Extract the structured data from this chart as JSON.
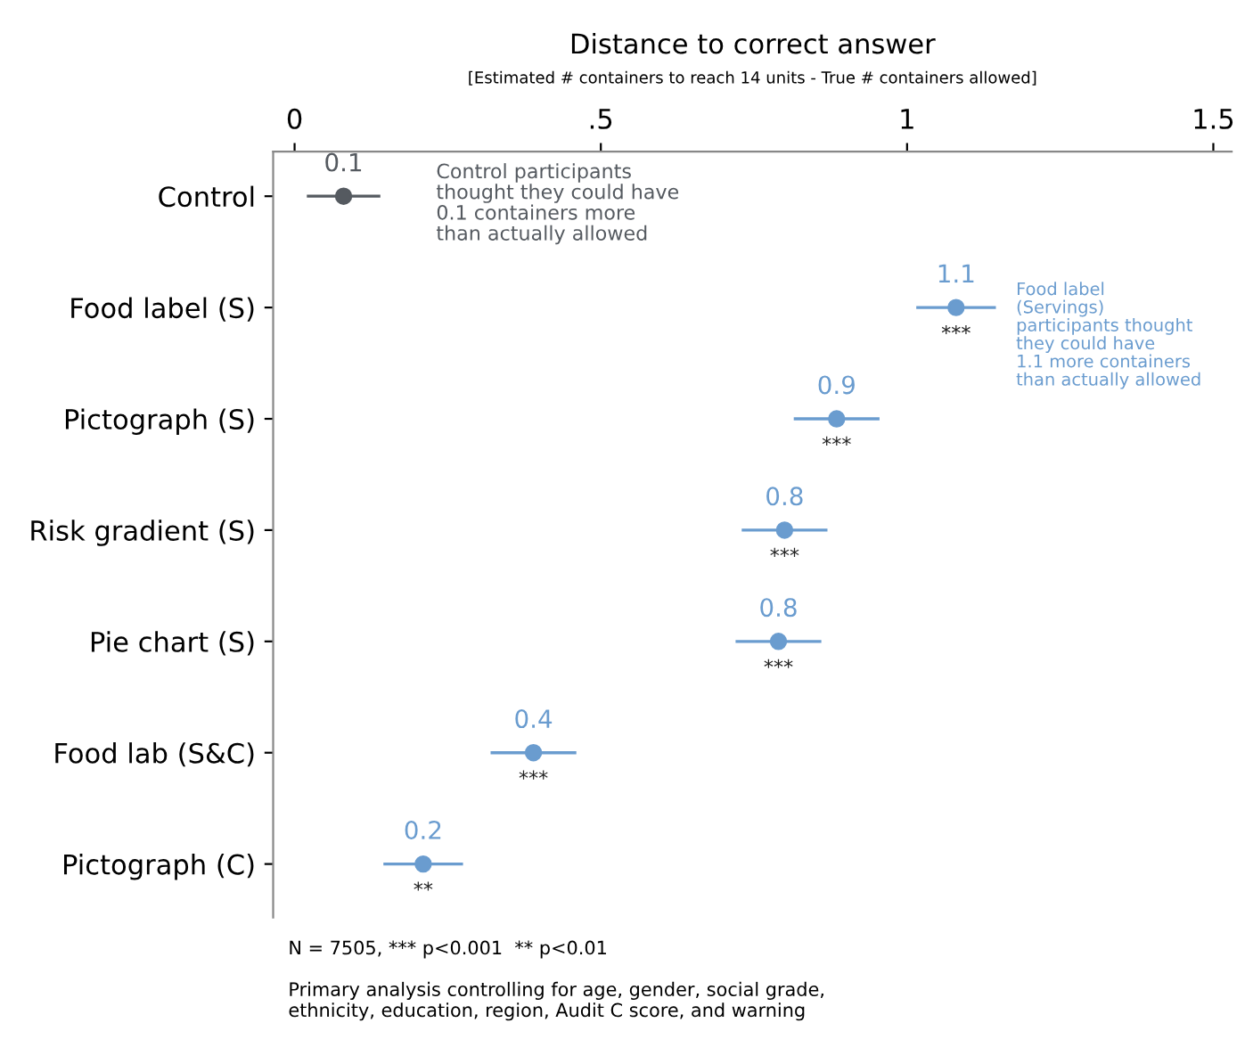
{
  "chart_data": {
    "type": "scatter",
    "xlabel": "Distance to correct answer",
    "categories": [
      "Control",
      "Food label (S)",
      "Pictograph (S)",
      "Risk gradient (S)",
      "Pie chart (S)",
      "Food lab (S&C)",
      "Pictograph (C)"
    ],
    "orientation": "horizontal",
    "values": [
      0.08,
      1.08,
      0.885,
      0.8,
      0.79,
      0.39,
      0.21
    ],
    "errors": [
      0.06,
      0.065,
      0.07,
      0.07,
      0.07,
      0.07,
      0.065
    ],
    "value_labels": [
      "0.1",
      "1.1",
      "0.9",
      "0.8",
      "0.8",
      "0.4",
      "0.2"
    ],
    "colors": [
      "#555a60",
      "#6a9ccf",
      "#6a9ccf",
      "#6a9ccf",
      "#6a9ccf",
      "#6a9ccf",
      "#6a9ccf"
    ],
    "xlim": [
      -0.035,
      1.53
    ],
    "xticks": [
      {
        "value": 0,
        "label": "0"
      },
      {
        "value": 0.5,
        "label": ".5"
      },
      {
        "value": 1,
        "label": "1"
      },
      {
        "value": 1.5,
        "label": "1.5"
      }
    ],
    "marker": "circle",
    "grid": false,
    "annotations": [
      "[Estimated # containers to reach 14 units - True # containers allowed]",
      "Control participants\nthought they could have\n0.1 containers more\nthan actually allowed",
      "Food label\n(Servings)\nparticipants thought\nthey could have\n1.1 more containers\nthan actually allowed",
      {
        "text": "***",
        "x": 1.08,
        "y": "Food label (S)"
      },
      {
        "text": "***",
        "x": 0.885,
        "y": "Pictograph (S)"
      },
      {
        "text": "***",
        "x": 0.8,
        "y": "Risk gradient (S)"
      },
      {
        "text": "***",
        "x": 0.79,
        "y": "Pie chart (S)"
      },
      {
        "text": "***",
        "x": 0.39,
        "y": "Food lab (S&C)"
      },
      {
        "text": "**",
        "x": 0.21,
        "y": "Pictograph (C)"
      },
      "N = 7505, *** p<0.001  ** p<0.01",
      "Primary analysis controlling for age, gender, social grade,\nethnicity, education, region, Audit C score, and warning"
    ]
  }
}
